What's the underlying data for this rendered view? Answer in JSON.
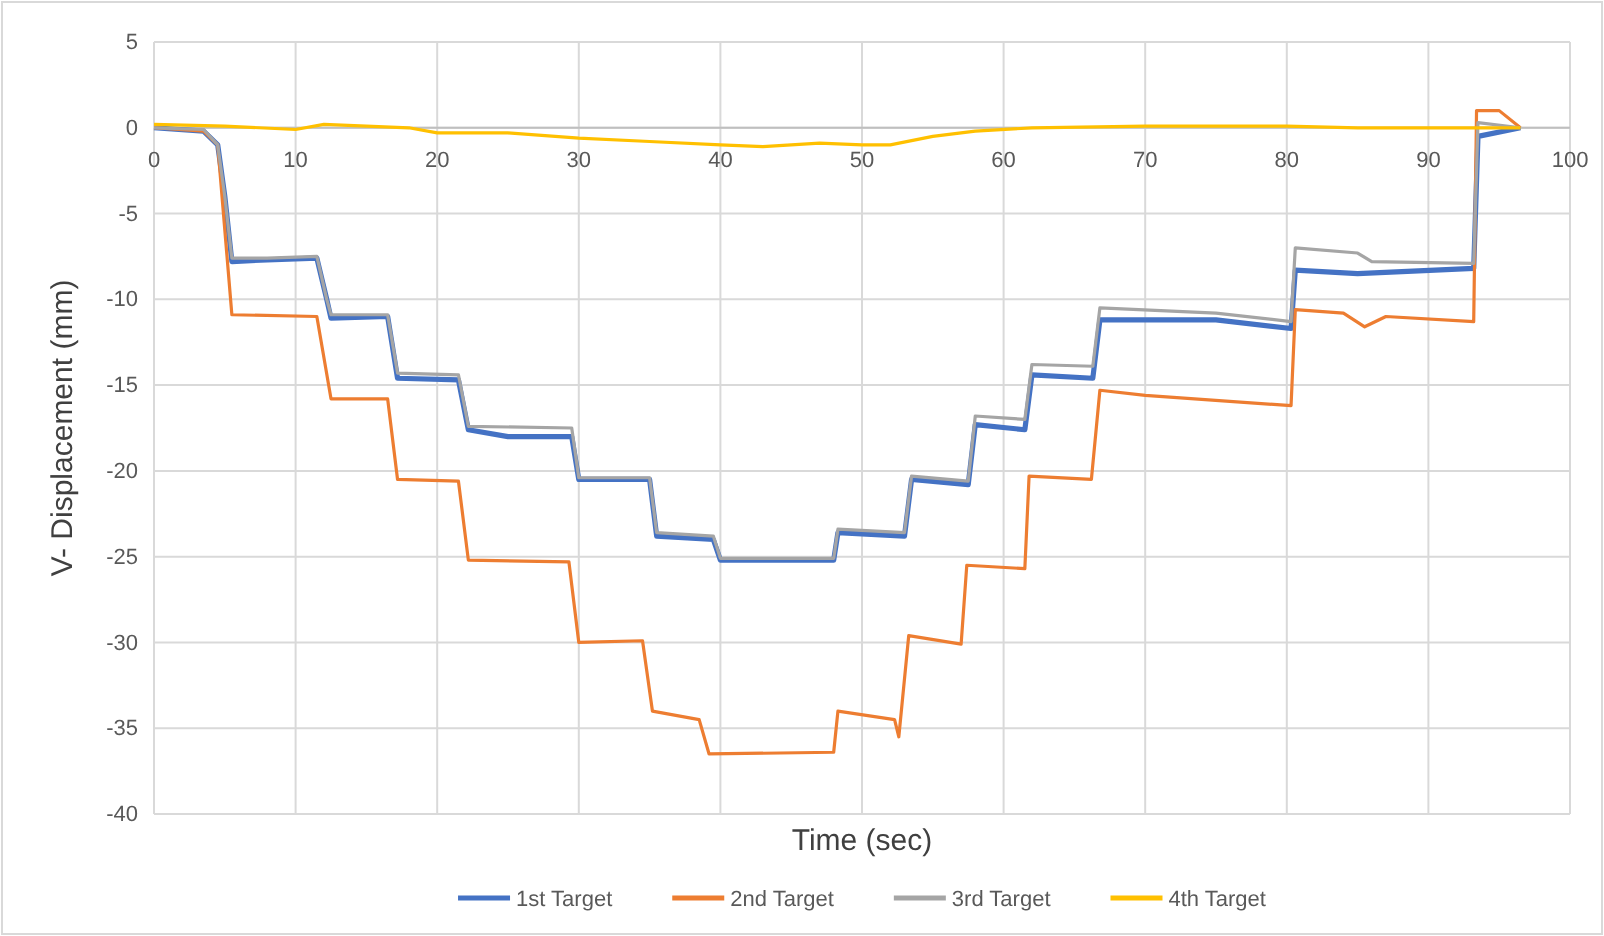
{
  "chart_data": {
    "type": "line",
    "xlabel": "Time (sec)",
    "ylabel": "V- Displacement (mm)",
    "xlim": [
      0,
      100
    ],
    "xticks": [
      0,
      10,
      20,
      30,
      40,
      50,
      60,
      70,
      80,
      90,
      100
    ],
    "ylim": [
      -40,
      5
    ],
    "yticks": [
      -40,
      -35,
      -30,
      -25,
      -20,
      -15,
      -10,
      -5,
      0,
      5
    ],
    "grid": true,
    "legend": "bottom",
    "series": [
      {
        "name": "1st Target",
        "color": "#4472c4",
        "x": [
          0,
          3.5,
          4.5,
          5,
          5.5,
          8,
          11.5,
          12.2,
          12.5,
          16.5,
          17.2,
          21.5,
          22.2,
          25,
          29.5,
          30,
          35,
          35.5,
          39.5,
          40,
          48,
          48.3,
          53,
          53.5,
          57.5,
          58,
          61.5,
          62,
          66.3,
          66.8,
          75,
          80.3,
          80.6,
          85,
          93.2,
          93.5,
          96.5
        ],
        "values": [
          0,
          -0.2,
          -1,
          -4,
          -7.8,
          -7.7,
          -7.6,
          -10,
          -11.1,
          -11,
          -14.6,
          -14.7,
          -17.6,
          -18,
          -18,
          -20.5,
          -20.5,
          -23.8,
          -24,
          -25.2,
          -25.2,
          -23.6,
          -23.8,
          -20.5,
          -20.8,
          -17.3,
          -17.6,
          -14.4,
          -14.6,
          -11.2,
          -11.2,
          -11.7,
          -8.3,
          -8.5,
          -8.2,
          -0.5,
          0
        ]
      },
      {
        "name": "2nd Target",
        "color": "#ed7d31",
        "x": [
          0,
          3.5,
          4.5,
          5.5,
          11.5,
          12.5,
          16.5,
          17.2,
          21.5,
          22.2,
          29.3,
          30,
          34.5,
          35.2,
          38.5,
          39.2,
          48,
          48.3,
          52.3,
          52.6,
          53.3,
          57,
          57.4,
          61.5,
          61.8,
          66.2,
          66.8,
          70,
          80.3,
          80.6,
          84,
          85.5,
          87,
          93.2,
          93.4,
          95,
          96.5
        ],
        "values": [
          0,
          -0.2,
          -1,
          -10.9,
          -11,
          -15.8,
          -15.8,
          -20.5,
          -20.6,
          -25.2,
          -25.3,
          -30,
          -29.9,
          -34,
          -34.5,
          -36.5,
          -36.4,
          -34,
          -34.5,
          -35.5,
          -29.6,
          -30.1,
          -25.5,
          -25.7,
          -20.3,
          -20.5,
          -15.3,
          -15.6,
          -16.2,
          -10.6,
          -10.8,
          -11.6,
          -11,
          -11.3,
          1,
          1,
          0
        ]
      },
      {
        "name": "3rd Target",
        "color": "#a5a5a5",
        "x": [
          0,
          3.5,
          4.5,
          5,
          5.5,
          8,
          11.5,
          12.2,
          12.5,
          16.5,
          17.2,
          21.5,
          22.2,
          29.5,
          30,
          35,
          35.5,
          39.5,
          40,
          48,
          48.3,
          53,
          53.5,
          57.5,
          58,
          61.5,
          62,
          66.3,
          66.8,
          75,
          80.3,
          80.6,
          85,
          86,
          93.2,
          93.5,
          96.5
        ],
        "values": [
          0,
          -0.1,
          -1,
          -4,
          -7.6,
          -7.6,
          -7.5,
          -10,
          -10.9,
          -10.9,
          -14.3,
          -14.4,
          -17.4,
          -17.5,
          -20.4,
          -20.4,
          -23.6,
          -23.8,
          -25.1,
          -25.1,
          -23.4,
          -23.6,
          -20.3,
          -20.6,
          -16.8,
          -17,
          -13.8,
          -13.9,
          -10.5,
          -10.8,
          -11.3,
          -7,
          -7.3,
          -7.8,
          -7.9,
          0.3,
          0
        ]
      },
      {
        "name": "4th Target",
        "color": "#ffc000",
        "x": [
          0,
          5,
          10,
          12,
          18,
          20,
          25,
          30,
          35,
          40,
          43,
          47,
          50,
          52,
          55,
          58,
          62,
          70,
          80,
          85,
          90,
          93,
          96.5
        ],
        "values": [
          0.2,
          0.1,
          -0.1,
          0.2,
          0,
          -0.3,
          -0.3,
          -0.6,
          -0.8,
          -1,
          -1.1,
          -0.9,
          -1,
          -1,
          -0.5,
          -0.2,
          0,
          0.1,
          0.1,
          0,
          0,
          0,
          0
        ]
      }
    ]
  }
}
